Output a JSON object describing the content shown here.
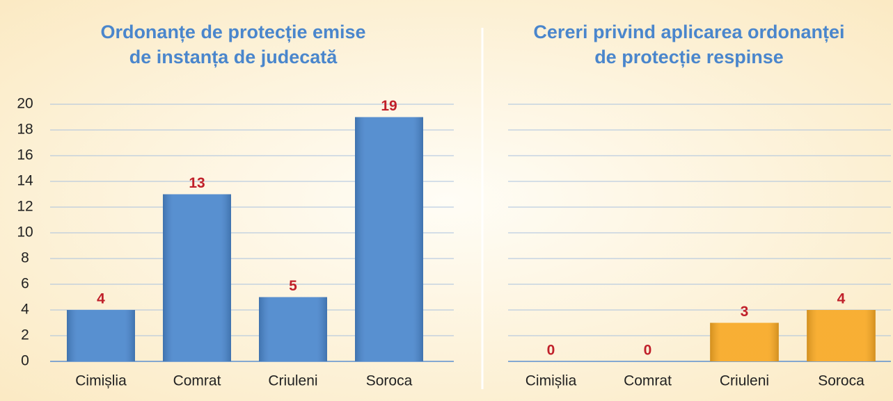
{
  "chart_data": [
    {
      "type": "bar",
      "title": [
        "Ordonanțe de protecție emise",
        "de instanța de judecată"
      ],
      "categories": [
        "Cimișlia",
        "Comrat",
        "Criuleni",
        "Soroca"
      ],
      "values": [
        4,
        13,
        5,
        19
      ],
      "color": "#4a86cc",
      "ylim": [
        0,
        20
      ],
      "yticks": [
        0,
        2,
        4,
        6,
        8,
        10,
        12,
        14,
        16,
        18,
        20
      ],
      "ytick_labels": true,
      "grid": true
    },
    {
      "type": "bar",
      "title": [
        "Cereri privind aplicarea ordonanței",
        "de protecție respinse"
      ],
      "categories": [
        "Cimișlia",
        "Comrat",
        "Criuleni",
        "Soroca"
      ],
      "values": [
        0,
        0,
        3,
        4
      ],
      "color": "#f7a823",
      "ylim": [
        0,
        20
      ],
      "yticks": [
        0,
        2,
        4,
        6,
        8,
        10,
        12,
        14,
        16,
        18,
        20
      ],
      "ytick_labels": false,
      "grid": true
    }
  ]
}
